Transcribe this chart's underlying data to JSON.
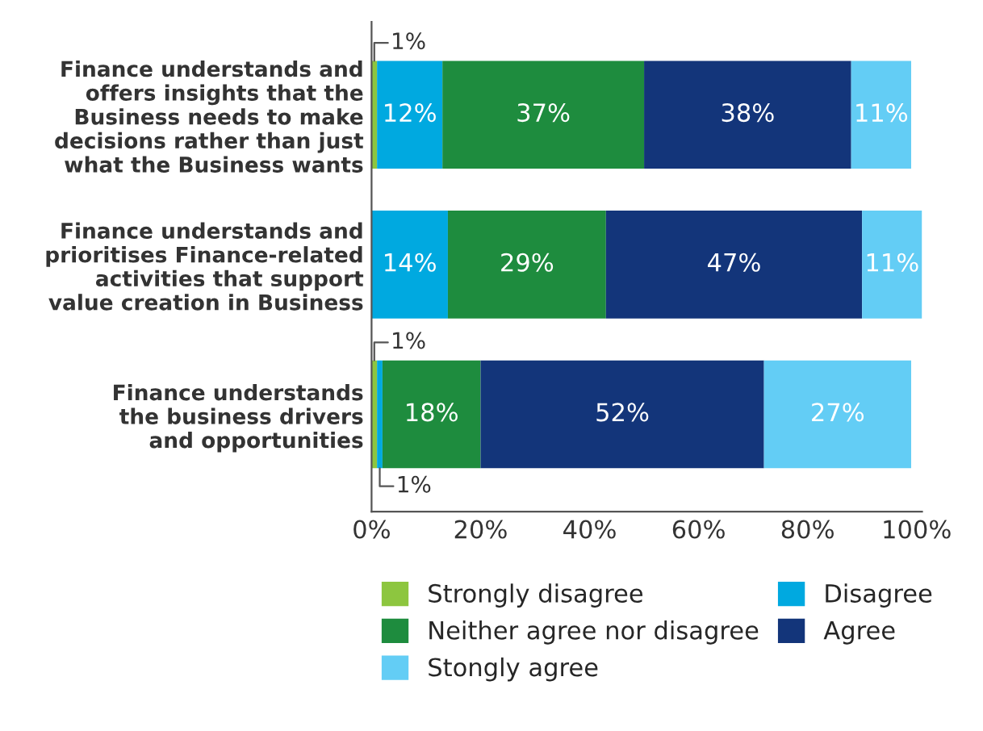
{
  "chart_data": {
    "type": "bar",
    "orientation": "horizontal",
    "stacked": true,
    "categories": [
      "Finance understands and\noffers insights that the\nBusiness needs to make\ndecisions rather than just\nwhat the Business wants",
      "Finance understands and\nprioritises Finance-related\nactivities that support\nvalue creation in Business",
      "Finance understands\nthe business drivers\nand opportunities"
    ],
    "series": [
      {
        "name": "Strongly disagree",
        "color": "#8dc63f",
        "values": [
          1,
          0,
          1
        ],
        "value_labels": [
          "1%",
          null,
          "1%"
        ]
      },
      {
        "name": "Disagree",
        "color": "#00a9e0",
        "values": [
          12,
          14,
          1
        ],
        "value_labels": [
          "12%",
          "14%",
          "1%"
        ]
      },
      {
        "name": "Neither agree nor disagree",
        "color": "#1e8c3e",
        "values": [
          37,
          29,
          18
        ],
        "value_labels": [
          "37%",
          "29%",
          "18%"
        ]
      },
      {
        "name": "Agree",
        "color": "#13357a",
        "values": [
          38,
          47,
          52
        ],
        "value_labels": [
          "38%",
          "47%",
          "52%"
        ]
      },
      {
        "name": "Stongly agree",
        "color": "#63cdf5",
        "values": [
          11,
          11,
          27
        ],
        "value_labels": [
          "11%",
          "11%",
          "27%"
        ]
      }
    ],
    "xlim": [
      0,
      101
    ],
    "xticks": [
      {
        "value": 0,
        "label": "0%"
      },
      {
        "value": 20,
        "label": "20%"
      },
      {
        "value": 40,
        "label": "40%"
      },
      {
        "value": 60,
        "label": "60%"
      },
      {
        "value": 80,
        "label": "80%"
      },
      {
        "value": 100,
        "label": "100%"
      }
    ],
    "legend": "bottom",
    "grid": false
  }
}
